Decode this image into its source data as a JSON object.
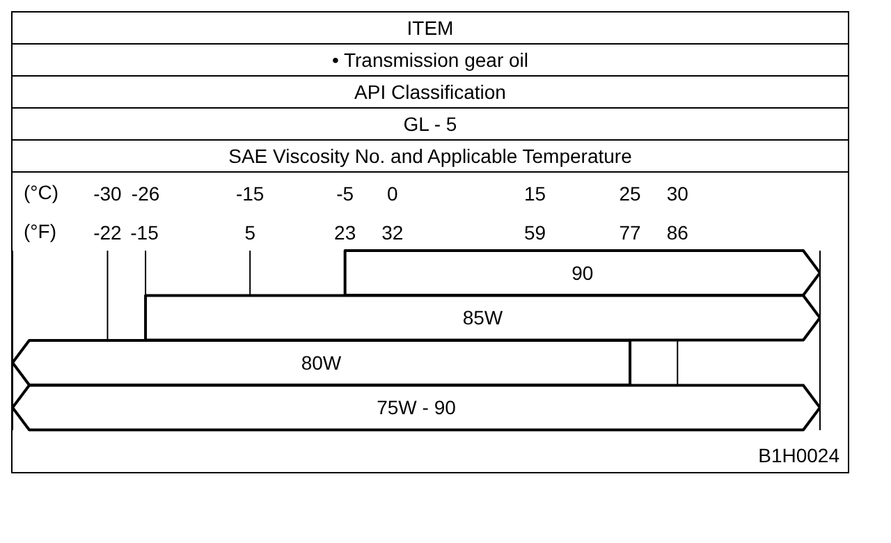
{
  "chart_data": {
    "type": "bar",
    "orientation": "horizontal",
    "title": "ITEM",
    "subtitle": "• Transmission gear oil",
    "annotations": [
      "API Classification",
      "GL - 5",
      "SAE Viscosity No. and Applicable Temperature",
      "B1H0024"
    ],
    "categories": [
      "90",
      "85W",
      "80W",
      "75W - 90"
    ],
    "base": [
      -5,
      -26,
      -40,
      -40
    ],
    "values": [
      50,
      71,
      65,
      85
    ],
    "color": "#ffffff",
    "xlabel": "(°C)",
    "x2label": "(°F)",
    "xlim": [
      -40,
      45
    ],
    "xticks": [
      -30,
      -26,
      -15,
      -5,
      0,
      15,
      25,
      30
    ],
    "x2lim": [
      -40,
      113
    ],
    "x2ticks": [
      -22,
      -15,
      5,
      23,
      32,
      59,
      77,
      86
    ],
    "grid": "x",
    "legend": false
  }
}
